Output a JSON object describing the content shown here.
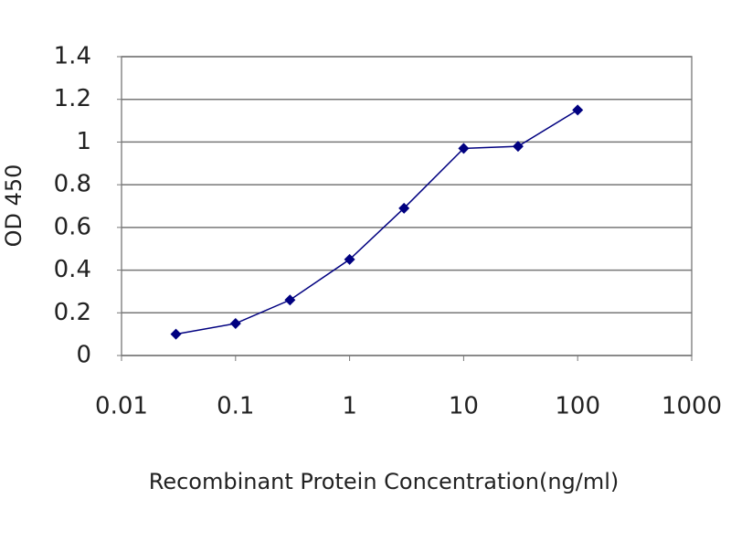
{
  "chart_data": {
    "type": "line",
    "x_label": "Recombinant  Protein Concentration(ng/ml)",
    "y_label": "OD 450",
    "x": [
      0.03,
      0.1,
      0.3,
      1,
      3,
      10,
      30,
      100
    ],
    "series": [
      {
        "color": "#000080",
        "values": [
          0.1,
          0.15,
          0.26,
          0.45,
          0.69,
          0.97,
          0.98,
          1.15
        ]
      }
    ],
    "xlim": [
      0.01,
      1000
    ],
    "xticks": [
      0.01,
      0.1,
      1,
      10,
      100,
      1000
    ],
    "xscale": "log",
    "ylim": [
      0,
      1.4
    ],
    "yticks": [
      0,
      0.2,
      0.4,
      0.6,
      0.8,
      1,
      1.2,
      1.4
    ],
    "grid": true
  }
}
